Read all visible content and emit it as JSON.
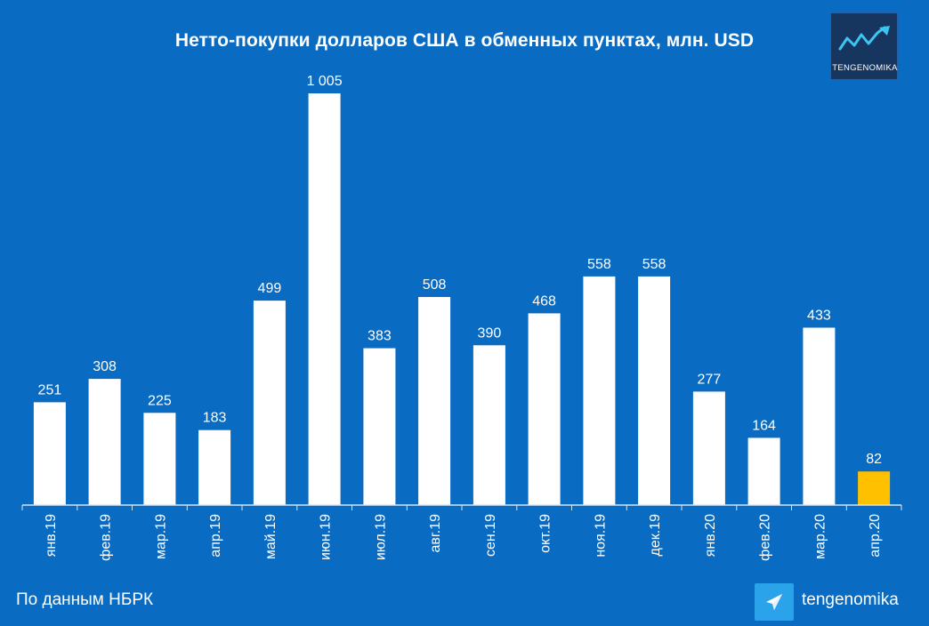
{
  "title": "Нетто-покупки долларов США в обменных пунктах, млн. USD",
  "logo": {
    "icon": "trend-line-icon",
    "text": "TENGENOMIKA"
  },
  "footer": {
    "source": "По данным НБРК",
    "channel_icon": "telegram-icon",
    "channel": "tengenomika"
  },
  "colors": {
    "background": "#0a6bc2",
    "bar": "#ffffff",
    "highlight": "#ffc000"
  },
  "chart_data": {
    "type": "bar",
    "categories": [
      "янв.19",
      "фев.19",
      "мар.19",
      "апр.19",
      "май.19",
      "июн.19",
      "июл.19",
      "авг.19",
      "сен.19",
      "окт.19",
      "ноя.19",
      "дек.19",
      "янв.20",
      "фев.20",
      "мар.20",
      "апр.20"
    ],
    "values": [
      251,
      308,
      225,
      183,
      499,
      1005,
      383,
      508,
      390,
      468,
      558,
      558,
      277,
      164,
      433,
      82
    ],
    "data_labels": [
      "251",
      "308",
      "225",
      "183",
      "499",
      "1 005",
      "383",
      "508",
      "390",
      "468",
      "558",
      "558",
      "277",
      "164",
      "433",
      "82"
    ],
    "highlight_index": 15,
    "ylim": [
      0,
      1005
    ],
    "xlabel": "",
    "ylabel": "",
    "grid": false,
    "legend": "none"
  }
}
